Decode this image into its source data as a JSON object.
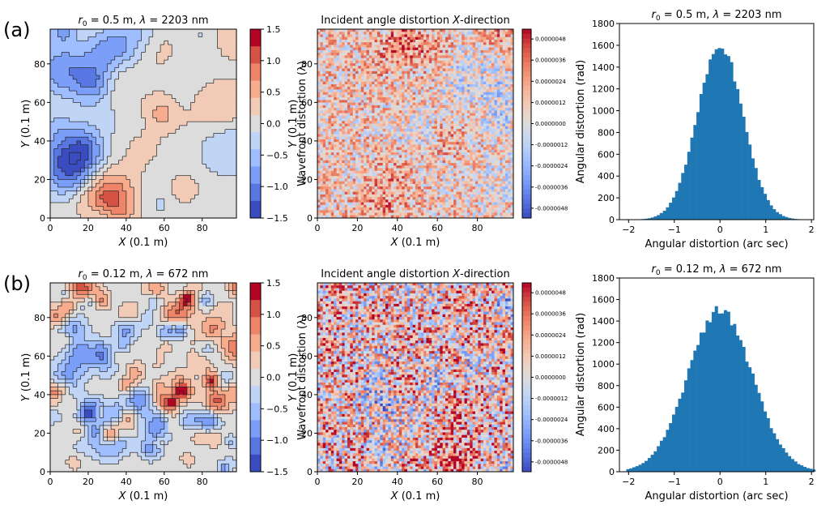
{
  "panel_labels": [
    "(a)",
    "(b)"
  ],
  "colors": {
    "wavefront_levels": [
      "#3b4cc0",
      "#5977e3",
      "#7b9ff9",
      "#9ebeff",
      "#c0d4f5",
      "#dddcdc",
      "#f2cbb7",
      "#f7ac8e",
      "#ee8468",
      "#d65244",
      "#b40426"
    ],
    "histogram_bar": "#1f77b4"
  },
  "chart_data": [
    {
      "type": "heatmap",
      "title": {
        "pre": "r",
        "sub": "0",
        "post": " = 0.5 m, ",
        "lam": "λ",
        "post2": " = 2203 nm"
      },
      "xlabel": {
        "var": "X",
        "rest": " (0.1 m)"
      },
      "ylabel": {
        "var": "Y",
        "rest": " (0.1 m)"
      },
      "xlim": [
        0,
        98
      ],
      "ylim": [
        0,
        98
      ],
      "xticks": [
        "0",
        "20",
        "40",
        "60",
        "80"
      ],
      "yticks": [
        "0",
        "20",
        "40",
        "60",
        "80"
      ],
      "colorbar": {
        "label": "Wavefront distortion (λ)",
        "range": [
          -1.5,
          1.5
        ],
        "ticks": [
          "1.5",
          "1.0",
          "0.5",
          "0.0",
          "−0.5",
          "−1.0",
          "−1.5"
        ]
      }
    },
    {
      "type": "heatmap",
      "title": {
        "pre": "Incident angle distortion ",
        "var": "X",
        "post": "-direction"
      },
      "xlabel": {
        "var": "X",
        "rest": " (0.1 m)"
      },
      "ylabel": {
        "var": "Y",
        "rest": " (0.1 m)"
      },
      "xlim": [
        0,
        98
      ],
      "ylim": [
        0,
        98
      ],
      "xticks": [
        "0",
        "20",
        "40",
        "60",
        "80"
      ],
      "yticks": [
        "0",
        "20",
        "40",
        "60",
        "80"
      ],
      "colorbar": {
        "label": "Angular distortion (rad)",
        "range": [
          -4.8e-06,
          4.8e-06
        ],
        "ticks": [
          "0.0000048",
          "0.0000036",
          "0.0000024",
          "0.0000012",
          "0.0000000",
          "-0.0000012",
          "-0.0000024",
          "-0.0000036",
          "-0.0000048"
        ]
      }
    },
    {
      "type": "bar",
      "title": {
        "pre": "r",
        "sub": "0",
        "post": " = 0.5 m, ",
        "lam": "λ",
        "post2": " = 2203 nm"
      },
      "xlabel": "Angular distortion (arc sec)",
      "ylabel": "",
      "xlim": [
        -2.2,
        2.05
      ],
      "ylim": [
        0,
        1800
      ],
      "xticks": [
        -2,
        -1,
        0,
        1,
        2
      ],
      "yticks": [
        0,
        200,
        400,
        600,
        800,
        1000,
        1200,
        1400,
        1600,
        1800
      ],
      "distribution": {
        "sigma": 0.5,
        "peak": 1600,
        "bin_width": 0.0667
      }
    },
    {
      "type": "heatmap",
      "title": {
        "pre": "r",
        "sub": "0",
        "post": " = 0.12 m, ",
        "lam": "λ",
        "post2": " = 672 nm"
      },
      "xlabel": {
        "var": "X",
        "rest": " (0.1 m)"
      },
      "ylabel": {
        "var": "Y",
        "rest": " (0.1 m)"
      },
      "xlim": [
        0,
        98
      ],
      "ylim": [
        0,
        98
      ],
      "xticks": [
        "0",
        "20",
        "40",
        "60",
        "80"
      ],
      "yticks": [
        "0",
        "20",
        "40",
        "60",
        "80"
      ],
      "colorbar": {
        "label": "Wavefront distortion (λ)",
        "range": [
          -1.5,
          1.5
        ],
        "ticks": [
          "1.5",
          "1.0",
          "0.5",
          "0.0",
          "−0.5",
          "−1.0",
          "−1.5"
        ]
      }
    },
    {
      "type": "heatmap",
      "title": {
        "pre": "Incident angle distortion ",
        "var": "X",
        "post": "-direction"
      },
      "xlabel": {
        "var": "X",
        "rest": " (0.1 m)"
      },
      "ylabel": {
        "var": "Y",
        "rest": " (0.1 m)"
      },
      "xlim": [
        0,
        98
      ],
      "ylim": [
        0,
        98
      ],
      "xticks": [
        "0",
        "20",
        "40",
        "60",
        "80"
      ],
      "yticks": [
        "0",
        "20",
        "40",
        "60",
        "80"
      ],
      "colorbar": {
        "label": "Angular distortion (rad)",
        "range": [
          -4.8e-06,
          4.8e-06
        ],
        "ticks": [
          "0.0000048",
          "0.0000036",
          "0.0000024",
          "0.0000012",
          "0.0000000",
          "-0.0000012",
          "-0.0000024",
          "-0.0000036",
          "-0.0000048"
        ]
      }
    },
    {
      "type": "bar",
      "title": {
        "pre": "r",
        "sub": "0",
        "post": " = 0.12 m, ",
        "lam": "λ",
        "post2": " = 672 nm"
      },
      "xlabel": "Angular distortion (arc sec)",
      "ylabel": "",
      "xlim": [
        -2.2,
        2.05
      ],
      "ylim": [
        0,
        1800
      ],
      "xticks": [
        -2,
        -1,
        0,
        1,
        2
      ],
      "yticks": [
        0,
        200,
        400,
        600,
        800,
        1000,
        1200,
        1400,
        1600,
        1800
      ],
      "distribution": {
        "sigma": 0.7,
        "peak": 1500,
        "bin_width": 0.0667
      }
    }
  ]
}
